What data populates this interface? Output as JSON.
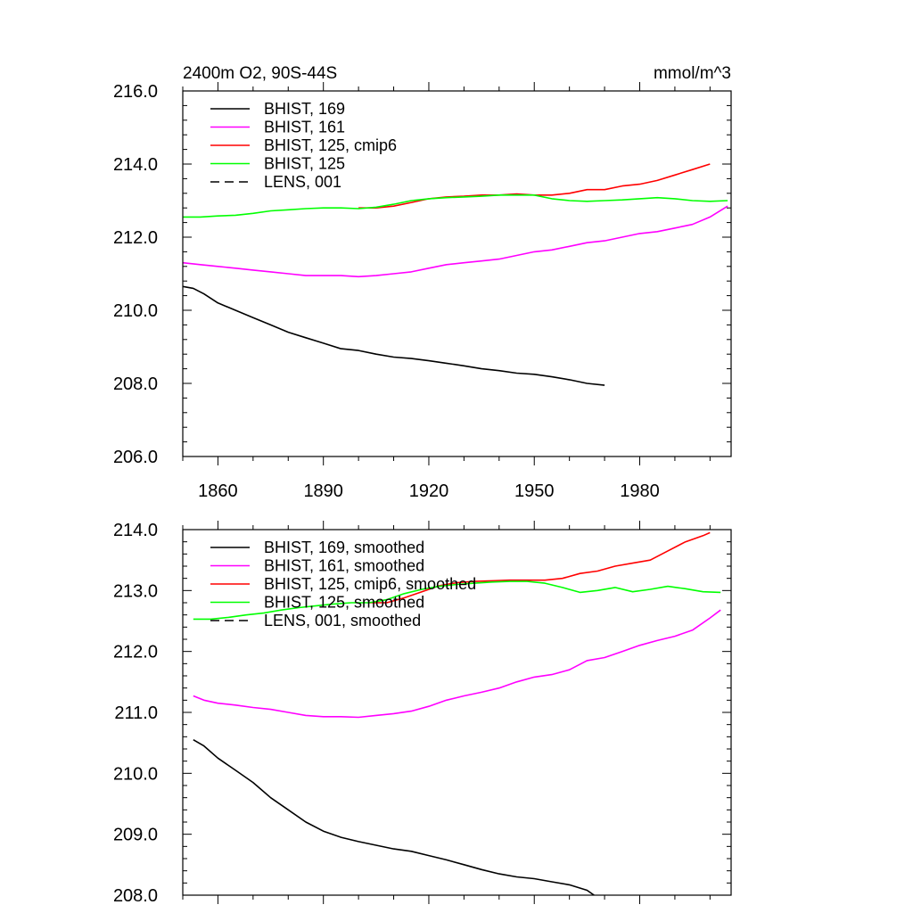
{
  "colors": {
    "black": "#000000",
    "magenta": "#ff00ff",
    "red": "#ff0000",
    "green": "#00ff00"
  },
  "chart_data": [
    {
      "type": "line",
      "title_left": "2400m O2, 90S-44S",
      "title_right": "mmol/m^3",
      "xlim": [
        1850,
        2006
      ],
      "ylim": [
        206.0,
        216.0
      ],
      "x_ticks": [
        1860,
        1890,
        1920,
        1950,
        1980
      ],
      "y_ticks": [
        "206.0",
        "208.0",
        "210.0",
        "212.0",
        "214.0",
        "216.0"
      ],
      "legend_position": "top-left",
      "series": [
        {
          "name": "BHIST, 169",
          "color": "#000000",
          "dash": "solid",
          "x": [
            1850,
            1853,
            1856,
            1860,
            1865,
            1870,
            1875,
            1880,
            1885,
            1890,
            1895,
            1900,
            1905,
            1910,
            1915,
            1920,
            1925,
            1930,
            1935,
            1940,
            1945,
            1950,
            1955,
            1960,
            1965,
            1970
          ],
          "y": [
            210.65,
            210.6,
            210.45,
            210.2,
            210.0,
            209.8,
            209.6,
            209.4,
            209.25,
            209.1,
            208.95,
            208.9,
            208.8,
            208.72,
            208.68,
            208.62,
            208.55,
            208.48,
            208.4,
            208.35,
            208.28,
            208.25,
            208.18,
            208.1,
            208.0,
            207.95
          ]
        },
        {
          "name": "BHIST, 161",
          "color": "#ff00ff",
          "dash": "solid",
          "x": [
            1850,
            1855,
            1860,
            1865,
            1870,
            1875,
            1880,
            1885,
            1890,
            1895,
            1900,
            1905,
            1910,
            1915,
            1920,
            1925,
            1930,
            1935,
            1940,
            1945,
            1950,
            1955,
            1960,
            1965,
            1970,
            1975,
            1980,
            1985,
            1990,
            1995,
            2000,
            2005
          ],
          "y": [
            211.3,
            211.25,
            211.2,
            211.15,
            211.1,
            211.05,
            211.0,
            210.95,
            210.95,
            210.95,
            210.92,
            210.95,
            211.0,
            211.05,
            211.15,
            211.25,
            211.3,
            211.35,
            211.4,
            211.5,
            211.6,
            211.65,
            211.75,
            211.85,
            211.9,
            212.0,
            212.1,
            212.15,
            212.25,
            212.35,
            212.55,
            212.85
          ]
        },
        {
          "name": "BHIST, 125, cmip6",
          "color": "#ff0000",
          "dash": "solid",
          "x": [
            1900,
            1905,
            1910,
            1915,
            1920,
            1925,
            1930,
            1935,
            1940,
            1945,
            1950,
            1955,
            1960,
            1965,
            1970,
            1975,
            1980,
            1985,
            1990,
            1995,
            2000
          ],
          "y": [
            212.8,
            212.8,
            212.85,
            212.95,
            213.05,
            213.1,
            213.12,
            213.15,
            213.15,
            213.18,
            213.15,
            213.15,
            213.2,
            213.3,
            213.3,
            213.4,
            213.45,
            213.55,
            213.7,
            213.85,
            214.0
          ]
        },
        {
          "name": "BHIST, 125",
          "color": "#00ff00",
          "dash": "solid",
          "x": [
            1850,
            1855,
            1860,
            1865,
            1870,
            1875,
            1880,
            1885,
            1890,
            1895,
            1900,
            1905,
            1910,
            1915,
            1920,
            1925,
            1930,
            1935,
            1940,
            1945,
            1950,
            1955,
            1960,
            1965,
            1970,
            1975,
            1980,
            1985,
            1990,
            1995,
            2000,
            2005
          ],
          "y": [
            212.55,
            212.55,
            212.58,
            212.6,
            212.65,
            212.72,
            212.75,
            212.78,
            212.8,
            212.8,
            212.78,
            212.82,
            212.9,
            213.0,
            213.05,
            213.08,
            213.1,
            213.12,
            213.15,
            213.15,
            213.15,
            213.05,
            213.0,
            212.98,
            213.0,
            213.02,
            213.05,
            213.08,
            213.05,
            213.0,
            212.98,
            213.0
          ]
        },
        {
          "name": "LENS, 001",
          "color": "#000000",
          "dash": "dashed",
          "x": [],
          "y": []
        }
      ]
    },
    {
      "type": "line",
      "xlim": [
        1850,
        2006
      ],
      "ylim": [
        208.0,
        214.0
      ],
      "y_ticks": [
        "208.0",
        "209.0",
        "210.0",
        "211.0",
        "212.0",
        "213.0",
        "214.0"
      ],
      "legend_position": "top-left",
      "series": [
        {
          "name": "BHIST, 169, smoothed",
          "color": "#000000",
          "dash": "solid",
          "x": [
            1853,
            1856,
            1860,
            1865,
            1870,
            1875,
            1880,
            1885,
            1890,
            1895,
            1900,
            1905,
            1910,
            1915,
            1920,
            1925,
            1930,
            1935,
            1940,
            1945,
            1950,
            1955,
            1960,
            1965,
            1967
          ],
          "y": [
            210.55,
            210.45,
            210.25,
            210.05,
            209.85,
            209.6,
            209.4,
            209.2,
            209.05,
            208.95,
            208.88,
            208.82,
            208.76,
            208.72,
            208.65,
            208.58,
            208.5,
            208.42,
            208.35,
            208.3,
            208.27,
            208.22,
            208.17,
            208.08,
            208.0
          ]
        },
        {
          "name": "BHIST, 161, smoothed",
          "color": "#ff00ff",
          "dash": "solid",
          "x": [
            1853,
            1856,
            1860,
            1865,
            1870,
            1875,
            1880,
            1885,
            1890,
            1895,
            1900,
            1905,
            1910,
            1915,
            1920,
            1925,
            1930,
            1935,
            1940,
            1945,
            1950,
            1955,
            1960,
            1965,
            1970,
            1975,
            1980,
            1985,
            1990,
            1995,
            2000,
            2003
          ],
          "y": [
            211.27,
            211.2,
            211.15,
            211.12,
            211.08,
            211.05,
            211.0,
            210.95,
            210.93,
            210.93,
            210.92,
            210.95,
            210.98,
            211.02,
            211.1,
            211.2,
            211.27,
            211.33,
            211.4,
            211.5,
            211.58,
            211.62,
            211.7,
            211.85,
            211.9,
            212.0,
            212.1,
            212.18,
            212.25,
            212.35,
            212.55,
            212.68
          ]
        },
        {
          "name": "BHIST, 125, cmip6, smoothed",
          "color": "#ff0000",
          "dash": "solid",
          "x": [
            1903,
            1908,
            1913,
            1918,
            1923,
            1928,
            1933,
            1938,
            1943,
            1948,
            1953,
            1958,
            1963,
            1968,
            1973,
            1978,
            1983,
            1988,
            1993,
            1998,
            2000
          ],
          "y": [
            212.8,
            212.8,
            212.88,
            212.98,
            213.08,
            213.13,
            213.15,
            213.16,
            213.17,
            213.17,
            213.17,
            213.2,
            213.28,
            213.32,
            213.4,
            213.45,
            213.5,
            213.65,
            213.8,
            213.9,
            213.95
          ]
        },
        {
          "name": "BHIST, 125, smoothed",
          "color": "#00ff00",
          "dash": "solid",
          "x": [
            1853,
            1858,
            1863,
            1868,
            1873,
            1878,
            1883,
            1888,
            1893,
            1898,
            1903,
            1908,
            1913,
            1918,
            1923,
            1928,
            1933,
            1938,
            1943,
            1948,
            1953,
            1958,
            1963,
            1968,
            1973,
            1978,
            1983,
            1988,
            1993,
            1998,
            2003
          ],
          "y": [
            212.53,
            212.53,
            212.56,
            212.6,
            212.63,
            212.68,
            212.72,
            212.75,
            212.78,
            212.8,
            212.8,
            212.85,
            212.95,
            213.02,
            213.07,
            213.1,
            213.12,
            213.14,
            213.15,
            213.15,
            213.12,
            213.05,
            212.97,
            213.0,
            213.05,
            212.98,
            213.02,
            213.07,
            213.03,
            212.98,
            212.97
          ]
        },
        {
          "name": "LENS, 001, smoothed",
          "color": "#000000",
          "dash": "dashed",
          "x": [],
          "y": []
        }
      ]
    }
  ]
}
